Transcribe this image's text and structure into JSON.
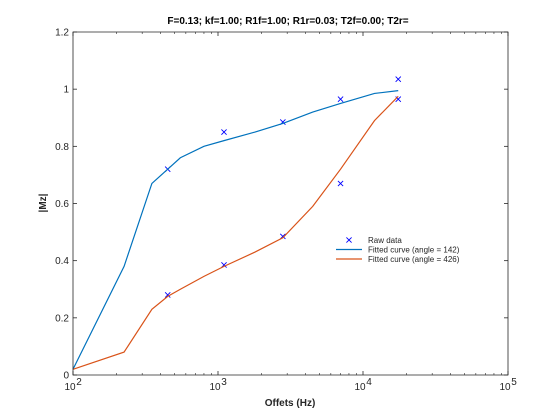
{
  "chart_data": {
    "type": "scatter",
    "title": "F=0.13; kf=1.00; R1f=1.00; R1r=0.03; T2f=0.00; T2r=",
    "xlabel": "Offets (Hz)",
    "ylabel": "|Mz|",
    "xscale": "log",
    "xlim": [
      100,
      100000
    ],
    "ylim": [
      0,
      1.2
    ],
    "xticks": [
      {
        "value": 100,
        "base": "10",
        "exp": "2"
      },
      {
        "value": 1000,
        "base": "10",
        "exp": "3"
      },
      {
        "value": 10000,
        "base": "10",
        "exp": "4"
      },
      {
        "value": 100000,
        "base": "10",
        "exp": "5"
      }
    ],
    "yticks": [
      {
        "value": 0,
        "label": "0"
      },
      {
        "value": 0.2,
        "label": "0.2"
      },
      {
        "value": 0.4,
        "label": "0.4"
      },
      {
        "value": 0.6,
        "label": "0.6"
      },
      {
        "value": 0.8,
        "label": "0.8"
      },
      {
        "value": 1.0,
        "label": "1"
      },
      {
        "value": 1.2,
        "label": "1.2"
      }
    ],
    "grid": false,
    "legend_position": "center-right",
    "series": [
      {
        "name": "Raw data",
        "kind": "scatter",
        "marker": "x",
        "color": "#0000ff",
        "points": [
          {
            "x": 450,
            "y": 0.72
          },
          {
            "x": 1100,
            "y": 0.85
          },
          {
            "x": 2800,
            "y": 0.885
          },
          {
            "x": 7000,
            "y": 0.965
          },
          {
            "x": 17500,
            "y": 1.035
          },
          {
            "x": 450,
            "y": 0.28
          },
          {
            "x": 1100,
            "y": 0.385
          },
          {
            "x": 2800,
            "y": 0.485
          },
          {
            "x": 7000,
            "y": 0.67
          },
          {
            "x": 17500,
            "y": 0.965
          }
        ]
      },
      {
        "name": "Fitted curve (angle = 142)",
        "kind": "line",
        "color": "#0072bd",
        "points": [
          {
            "x": 100,
            "y": 0.02
          },
          {
            "x": 225,
            "y": 0.38
          },
          {
            "x": 350,
            "y": 0.67
          },
          {
            "x": 450,
            "y": 0.72
          },
          {
            "x": 550,
            "y": 0.76
          },
          {
            "x": 800,
            "y": 0.8
          },
          {
            "x": 1100,
            "y": 0.82
          },
          {
            "x": 1800,
            "y": 0.85
          },
          {
            "x": 2800,
            "y": 0.88
          },
          {
            "x": 4500,
            "y": 0.92
          },
          {
            "x": 7000,
            "y": 0.95
          },
          {
            "x": 12000,
            "y": 0.985
          },
          {
            "x": 17500,
            "y": 0.995
          }
        ]
      },
      {
        "name": "Fitted curve (angle = 426)",
        "kind": "line",
        "color": "#d95319",
        "points": [
          {
            "x": 100,
            "y": 0.02
          },
          {
            "x": 225,
            "y": 0.08
          },
          {
            "x": 350,
            "y": 0.23
          },
          {
            "x": 450,
            "y": 0.275
          },
          {
            "x": 550,
            "y": 0.3
          },
          {
            "x": 800,
            "y": 0.345
          },
          {
            "x": 1100,
            "y": 0.38
          },
          {
            "x": 1800,
            "y": 0.43
          },
          {
            "x": 2800,
            "y": 0.48
          },
          {
            "x": 4500,
            "y": 0.59
          },
          {
            "x": 7000,
            "y": 0.72
          },
          {
            "x": 12000,
            "y": 0.89
          },
          {
            "x": 17500,
            "y": 0.975
          }
        ]
      }
    ]
  }
}
